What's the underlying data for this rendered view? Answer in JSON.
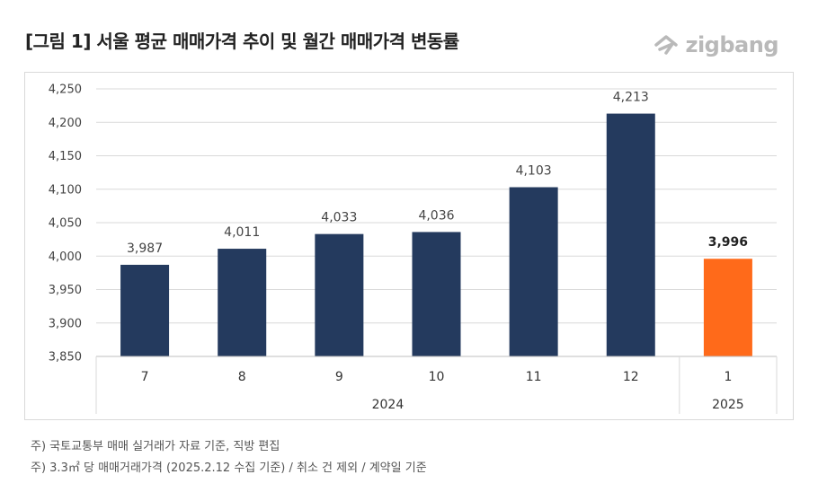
{
  "title": "[그림 1] 서울 평균 매매가격 추이 및 월간 매매가격 변동률",
  "logo": {
    "text": "zigbang",
    "icon": "zigbang-logo-icon",
    "color": "#b9b9b9"
  },
  "colors": {
    "bar": "#243a5e",
    "highlight": "#ff6a1a",
    "grid": "#d9d9d9"
  },
  "chart_data": {
    "type": "bar",
    "categories": [
      "7",
      "8",
      "9",
      "10",
      "11",
      "12",
      "1"
    ],
    "values": [
      3987,
      4011,
      4033,
      4036,
      4103,
      4213,
      3996
    ],
    "data_labels": [
      "3,987",
      "4,011",
      "4,033",
      "4,036",
      "4,103",
      "4,213",
      "3,996"
    ],
    "highlight_index": 6,
    "year_groups": [
      {
        "label": "2024",
        "start": 0,
        "end": 5
      },
      {
        "label": "2025",
        "start": 6,
        "end": 6
      }
    ],
    "ylim": [
      3850,
      4250
    ],
    "yticks": [
      3850,
      3900,
      3950,
      4000,
      4050,
      4100,
      4150,
      4200,
      4250
    ],
    "ytick_labels": [
      "3,850",
      "3,900",
      "3,950",
      "4,000",
      "4,050",
      "4,100",
      "4,150",
      "4,200",
      "4,250"
    ],
    "grid": true,
    "legend": false
  },
  "notes": [
    "주) 국토교통부 매매 실거래가 자료 기준, 직방 편집",
    "주) 3.3㎡ 당 매매거래가격 (2025.2.12 수집 기준) / 취소 건 제외 / 계약일 기준"
  ]
}
